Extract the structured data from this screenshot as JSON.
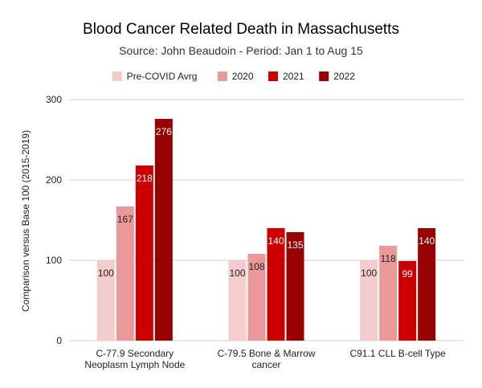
{
  "chart_data": {
    "type": "bar",
    "title": "Blood Cancer Related Death in Massachusetts",
    "subtitle": "Source: John Beaudoin - Period: Jan 1 to Aug 15",
    "ylabel": "Comparison versus Base 100 (2015-2019)",
    "xlabel": "",
    "ylim": [
      0,
      300
    ],
    "yticks": [
      0,
      100,
      200,
      300
    ],
    "grid": true,
    "legend_position": "top",
    "categories": [
      [
        "C-77.9 Secondary",
        "Neoplasm Lymph Node"
      ],
      [
        "C-79.5 Bone & Marrow",
        "cancer"
      ],
      [
        "C91.1 CLL B-cell Type"
      ]
    ],
    "series": [
      {
        "name": "Pre-COVID Avrg",
        "color": "#f4cccc",
        "label_color": "#222222",
        "values": [
          100,
          100,
          100
        ]
      },
      {
        "name": "2020",
        "color": "#ea9999",
        "label_color": "#222222",
        "values": [
          167,
          108,
          118
        ]
      },
      {
        "name": "2021",
        "color": "#cc0000",
        "label_color": "#ffffff",
        "values": [
          218,
          140,
          99
        ]
      },
      {
        "name": "2022",
        "color": "#990000",
        "label_color": "#ffffff",
        "values": [
          276,
          135,
          140
        ]
      }
    ]
  }
}
